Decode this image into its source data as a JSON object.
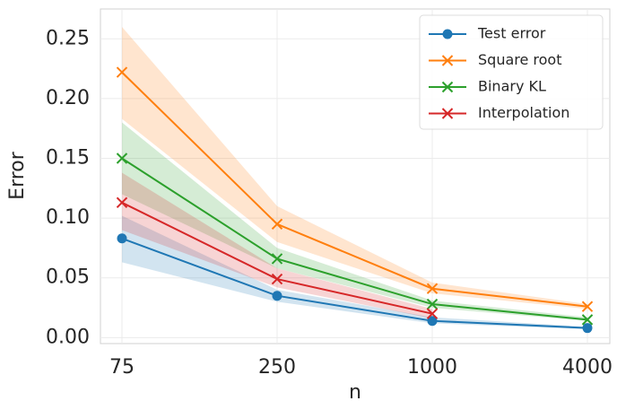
{
  "chart_data": {
    "type": "line",
    "xlabel": "n",
    "ylabel": "Error",
    "categories": [
      "75",
      "250",
      "1000",
      "4000"
    ],
    "ylim": [
      -0.005,
      0.275
    ],
    "yticks": [
      {
        "value": 0,
        "label": "0.00"
      },
      0.05,
      {
        "value": 0.1,
        "label": "0.10"
      },
      0.15,
      {
        "value": 0.2,
        "label": "0.20"
      },
      0.25
    ],
    "grid": true,
    "legend": "upper right",
    "series": [
      {
        "name": "Test error",
        "color": "#1f77b4",
        "marker": "circle",
        "values": [
          0.083,
          0.035,
          0.014,
          0.008
        ],
        "lower": [
          0.063,
          0.03,
          0.012,
          0.007
        ],
        "upper": [
          0.102,
          0.04,
          0.017,
          0.009
        ]
      },
      {
        "name": "Square root",
        "color": "#ff7f0e",
        "marker": "x",
        "values": [
          0.222,
          0.095,
          0.041,
          0.026
        ],
        "lower": [
          0.183,
          0.08,
          0.037,
          0.024
        ],
        "upper": [
          0.26,
          0.11,
          0.046,
          0.028
        ]
      },
      {
        "name": "Binary KL",
        "color": "#2ca02c",
        "marker": "x",
        "values": [
          0.15,
          0.066,
          0.028,
          0.015
        ],
        "lower": [
          0.12,
          0.058,
          0.025,
          0.014
        ],
        "upper": [
          0.18,
          0.075,
          0.031,
          0.017
        ]
      },
      {
        "name": "Interpolation",
        "color": "#d62728",
        "marker": "x",
        "values": [
          0.113,
          0.049,
          0.02,
          null
        ],
        "lower": [
          0.09,
          0.042,
          0.016,
          null
        ],
        "upper": [
          0.138,
          0.058,
          0.024,
          null
        ]
      }
    ]
  }
}
